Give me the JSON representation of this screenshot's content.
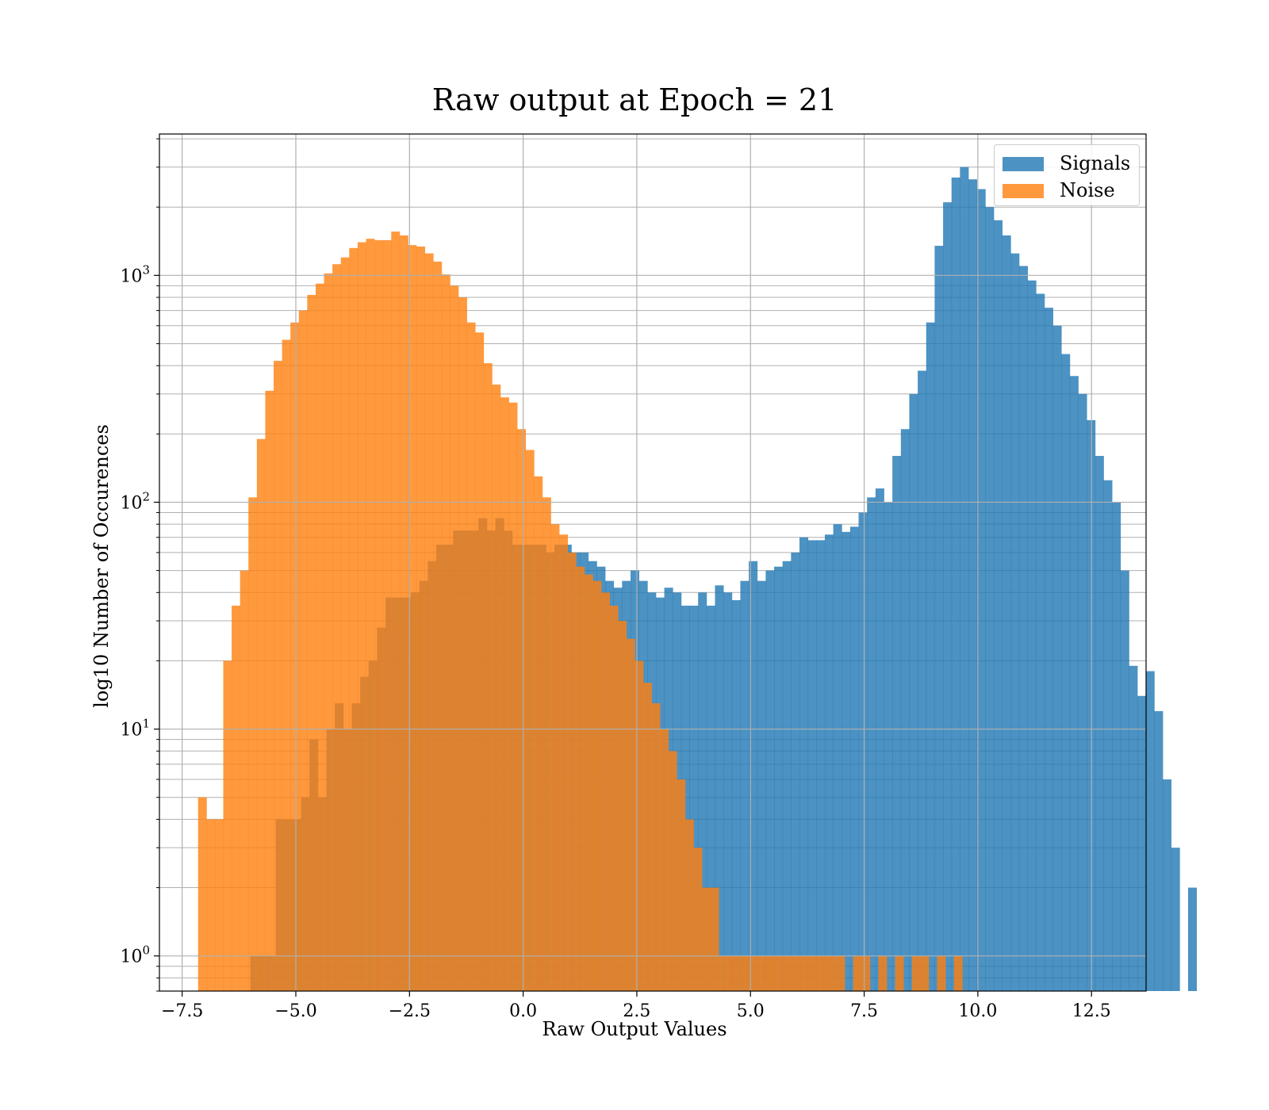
{
  "chart_data": {
    "type": "bar",
    "title": "Raw output at Epoch = 21",
    "xlabel": "Raw Output Values",
    "ylabel": "log10 Number of Occurences",
    "xlim": [
      -8.0,
      13.7
    ],
    "ylim": [
      0.7,
      4200
    ],
    "yscale": "log",
    "grid": true,
    "legend_position": "top-right",
    "x_ticks": [
      {
        "value": -7.5,
        "label": "−7.5"
      },
      {
        "value": -5.0,
        "label": "−5.0"
      },
      {
        "value": -2.5,
        "label": "−2.5"
      },
      {
        "value": 0.0,
        "label": "0.0"
      },
      {
        "value": 2.5,
        "label": "2.5"
      },
      {
        "value": 5.0,
        "label": "5.0"
      },
      {
        "value": 7.5,
        "label": "7.5"
      },
      {
        "value": 10.0,
        "label": "10.0"
      },
      {
        "value": 12.5,
        "label": "12.5"
      }
    ],
    "y_ticks": [
      {
        "value": 1,
        "base": "10",
        "exp": "0"
      },
      {
        "value": 10,
        "base": "10",
        "exp": "1"
      },
      {
        "value": 100,
        "base": "10",
        "exp": "2"
      },
      {
        "value": 1000,
        "base": "10",
        "exp": "3"
      }
    ],
    "series": [
      {
        "name": "Signals",
        "color": "#1f77b4",
        "opacity": 0.8,
        "bin_start": -6.0,
        "bin_width": 0.1858,
        "values": [
          1,
          1,
          1,
          4,
          4,
          4,
          5,
          9,
          5,
          10,
          13,
          10,
          13,
          17,
          20,
          28,
          38,
          38,
          38,
          40,
          45,
          55,
          65,
          65,
          75,
          75,
          75,
          85,
          75,
          85,
          75,
          65,
          65,
          65,
          65,
          60,
          65,
          65,
          60,
          60,
          55,
          52,
          45,
          42,
          45,
          50,
          45,
          40,
          38,
          42,
          40,
          35,
          35,
          40,
          35,
          43,
          40,
          37,
          45,
          55,
          45,
          50,
          52,
          55,
          60,
          70,
          68,
          68,
          72,
          80,
          74,
          78,
          90,
          105,
          115,
          100,
          160,
          210,
          300,
          380,
          620,
          1350,
          2100,
          2700,
          3000,
          2650,
          2400,
          2000,
          1750,
          1500,
          1250,
          1100,
          950,
          830,
          720,
          600,
          450,
          360,
          300,
          230,
          160,
          125,
          100,
          50,
          19,
          14,
          18,
          12,
          6,
          3,
          0.5,
          2
        ]
      },
      {
        "name": "Noise",
        "color": "#ff7f0e",
        "opacity": 0.8,
        "bin_start": -7.15,
        "bin_width": 0.1847,
        "values": [
          5,
          4,
          4,
          20,
          35,
          50,
          105,
          190,
          310,
          420,
          520,
          620,
          700,
          820,
          920,
          1020,
          1120,
          1200,
          1320,
          1400,
          1450,
          1430,
          1430,
          1560,
          1500,
          1360,
          1340,
          1250,
          1150,
          1010,
          900,
          800,
          620,
          560,
          410,
          330,
          290,
          275,
          210,
          170,
          130,
          105,
          80,
          72,
          60,
          52,
          48,
          45,
          40,
          35,
          30,
          25,
          20,
          16,
          13,
          10,
          8,
          6,
          4,
          3,
          2,
          2,
          1,
          1,
          1,
          1,
          1,
          1,
          1,
          1,
          1,
          1,
          1,
          1,
          1,
          1,
          1,
          0.5,
          1,
          1,
          0.5,
          1,
          0.5,
          1,
          0.5,
          1,
          1,
          0.5,
          1,
          0.5,
          1
        ]
      }
    ]
  }
}
